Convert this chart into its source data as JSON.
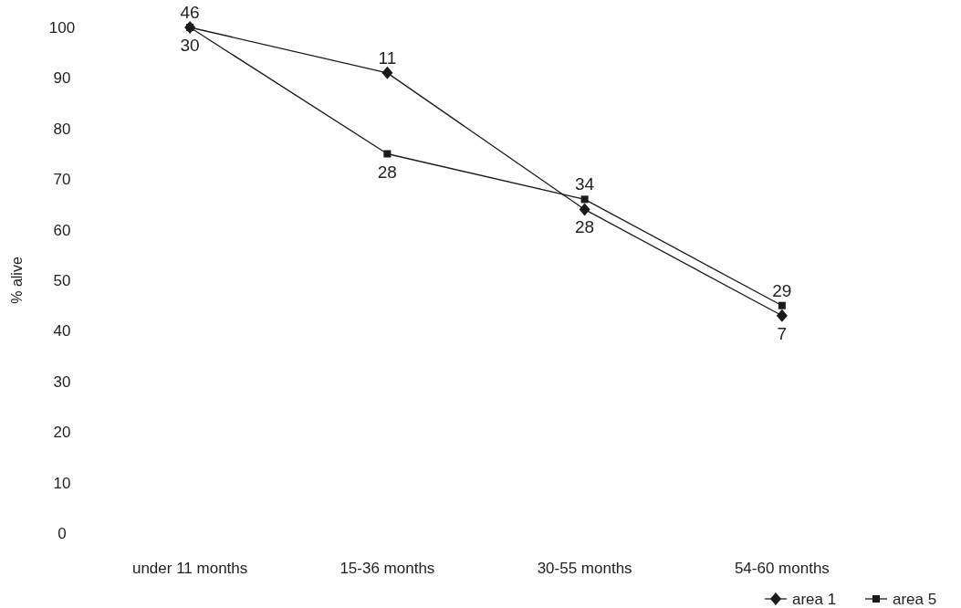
{
  "chart_data": {
    "type": "line",
    "ylabel": "% alive",
    "categories": [
      "under 11 months",
      "15-36 months",
      "30-55 months",
      "54-60 months"
    ],
    "ylim": [
      0,
      100
    ],
    "yticks": [
      0,
      10,
      20,
      30,
      40,
      50,
      60,
      70,
      80,
      90,
      100
    ],
    "grid": false,
    "legend": "bottom right",
    "series": [
      {
        "name": "area 1",
        "color": "#1a1a1a",
        "marker": "diamond",
        "values": [
          100,
          91,
          64,
          43
        ]
      },
      {
        "name": "area 5",
        "color": "#1a1a1a",
        "marker": "square",
        "values": [
          100,
          75,
          66,
          45
        ]
      }
    ],
    "annotations": [
      {
        "text": "46",
        "x": "under 11 months",
        "y": 100
      },
      {
        "text": "30",
        "x": "under 11 months",
        "y": 100
      },
      {
        "text": "11",
        "x": "15-36 months",
        "y": 91
      },
      {
        "text": "28",
        "x": "15-36 months",
        "y": 75
      },
      {
        "text": "34",
        "x": "30-55 months",
        "y": 66
      },
      {
        "text": "28",
        "x": "30-55 months",
        "y": 64
      },
      {
        "text": "29",
        "x": "54-60 months",
        "y": 45
      },
      {
        "text": "7",
        "x": "54-60 months",
        "y": 43
      }
    ]
  }
}
